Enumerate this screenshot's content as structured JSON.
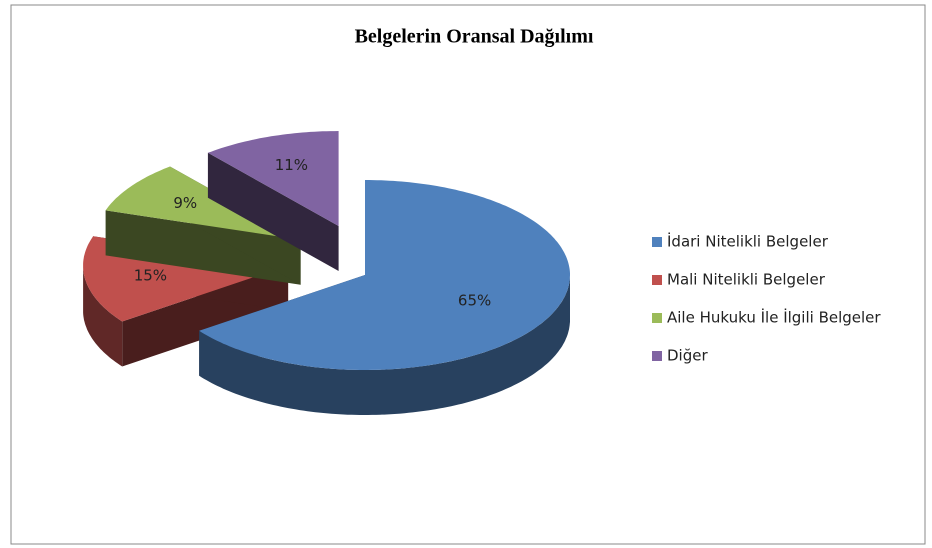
{
  "chart_data": {
    "type": "pie",
    "title": "Belgelerin Oransal Dağılımı",
    "categories": [
      "İdari Nitelikli Belgeler",
      "Mali Nitelikli Belgeler",
      "Aile Hukuku İle İlgili Belgeler",
      "Diğer"
    ],
    "values": [
      65,
      15,
      9,
      11
    ],
    "value_labels": [
      "65%",
      "15%",
      "9%",
      "11%"
    ],
    "colors": [
      "#4f81bd",
      "#c0504d",
      "#9bbb59",
      "#8064a2"
    ],
    "legend": "right"
  }
}
